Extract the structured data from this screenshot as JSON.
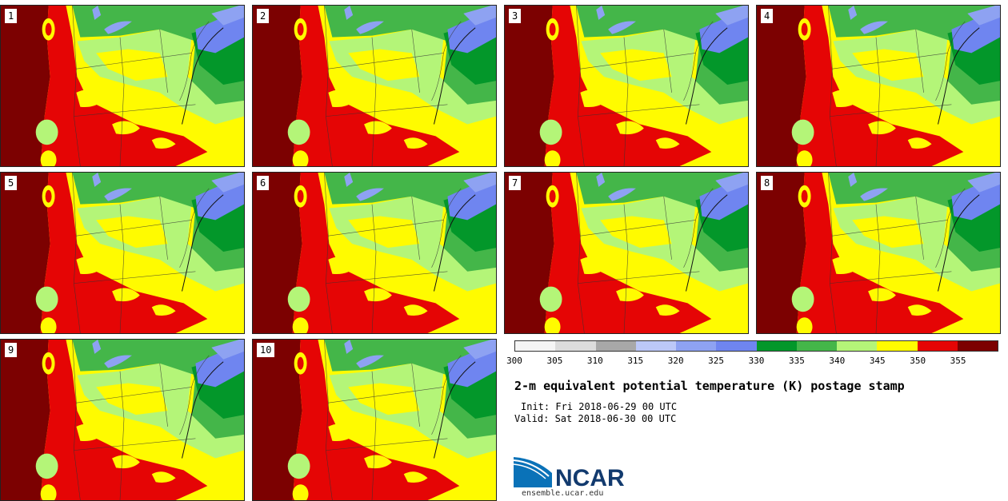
{
  "panels": [
    {
      "label": "1"
    },
    {
      "label": "2"
    },
    {
      "label": "3"
    },
    {
      "label": "4"
    },
    {
      "label": "5"
    },
    {
      "label": "6"
    },
    {
      "label": "7"
    },
    {
      "label": "8"
    },
    {
      "label": "9"
    },
    {
      "label": "10"
    }
  ],
  "colorbar": {
    "colors": [
      "#f5f5f5",
      "#dcdcdc",
      "#a8a8a8",
      "#bcc8f8",
      "#8ea2f2",
      "#6f85f0",
      "#03972a",
      "#44b649",
      "#b4f578",
      "#fffb00",
      "#e50505",
      "#7c0101"
    ],
    "ticks": [
      "300",
      "305",
      "310",
      "315",
      "320",
      "325",
      "330",
      "335",
      "340",
      "345",
      "350",
      "355"
    ]
  },
  "title": "2-m equivalent potential temperature (K) postage stamp",
  "init": "Init: Fri 2018-06-29 00 UTC",
  "valid": "Valid: Sat 2018-06-30 00 UTC",
  "logo": {
    "text": "NCAR",
    "site": "ensemble.ucar.edu",
    "blue": "#0a72b8"
  }
}
